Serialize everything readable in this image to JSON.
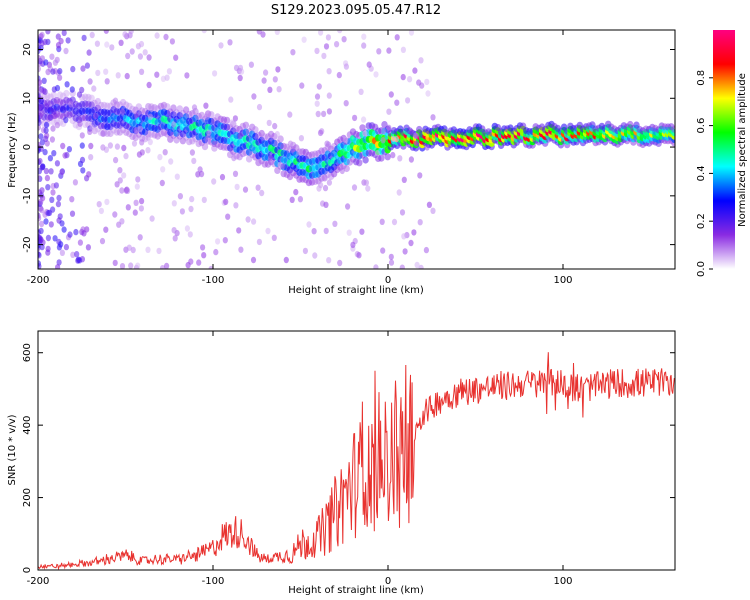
{
  "title": "S129.2023.095.05.47.R12",
  "chart_data": [
    {
      "type": "heatmap",
      "xlabel": "Height of straight line (km)",
      "ylabel": "Frequency (Hz)",
      "xlim": [
        -200,
        164
      ],
      "ylim": [
        -25,
        24
      ],
      "x_ticks": [
        -200,
        -100,
        0,
        100
      ],
      "y_ticks": [
        -20,
        -10,
        0,
        10,
        20
      ],
      "grid": false,
      "colorbar": {
        "label": "Normalized spectral amplitude",
        "range": [
          0,
          1
        ],
        "ticks": [
          "0.0",
          "0.2",
          "0.4",
          "0.6",
          "0.8"
        ],
        "colors": [
          "#ffffff",
          "#8a2be2",
          "#0000ff",
          "#00ffff",
          "#00ff00",
          "#ffff00",
          "#ff0000",
          "#ff0080"
        ]
      },
      "ridge": {
        "x": [
          -180,
          -160,
          -140,
          -120,
          -100,
          -80,
          -60,
          -45,
          -35,
          -25,
          -10,
          0,
          20,
          50,
          80,
          100,
          120,
          140,
          164
        ],
        "freq": [
          8,
          6,
          5,
          5,
          3,
          1,
          -2,
          -5,
          -3,
          -1,
          1,
          1.5,
          2,
          2,
          2.5,
          2.5,
          2.5,
          2.5,
          2.5
        ],
        "amplitude": [
          0.25,
          0.35,
          0.4,
          0.45,
          0.45,
          0.45,
          0.45,
          0.5,
          0.45,
          0.55,
          0.7,
          0.75,
          0.9,
          0.9,
          0.85,
          0.8,
          0.75,
          0.7,
          0.6
        ]
      }
    },
    {
      "type": "line",
      "xlabel": "Height of straight line (km)",
      "ylabel": "SNR (10 * v/v)",
      "xlim": [
        -200,
        164
      ],
      "ylim": [
        0,
        660
      ],
      "x_ticks": [
        -200,
        -100,
        0,
        100
      ],
      "y_ticks": [
        0,
        200,
        400,
        600
      ],
      "color": "#e8322f",
      "grid": false,
      "series": [
        {
          "x": [
            -200,
            -190,
            -180,
            -170,
            -160,
            -150,
            -140,
            -130,
            -120,
            -110,
            -100,
            -95,
            -90,
            -85,
            -80,
            -75,
            -70,
            -65,
            -60,
            -55,
            -50,
            -45,
            -40,
            -35,
            -30,
            -25,
            -20,
            -15,
            -10,
            -5,
            0,
            5,
            10,
            15,
            20,
            30,
            40,
            50,
            60,
            70,
            80,
            90,
            100,
            105,
            110,
            120,
            130,
            140,
            150,
            164
          ],
          "values": [
            10,
            10,
            15,
            20,
            30,
            40,
            25,
            30,
            30,
            40,
            60,
            90,
            100,
            110,
            80,
            40,
            30,
            35,
            40,
            45,
            70,
            80,
            90,
            120,
            160,
            200,
            240,
            260,
            280,
            300,
            310,
            320,
            340,
            380,
            430,
            470,
            490,
            500,
            505,
            510,
            515,
            515,
            520,
            510,
            500,
            510,
            515,
            515,
            515,
            520
          ]
        }
      ]
    }
  ]
}
